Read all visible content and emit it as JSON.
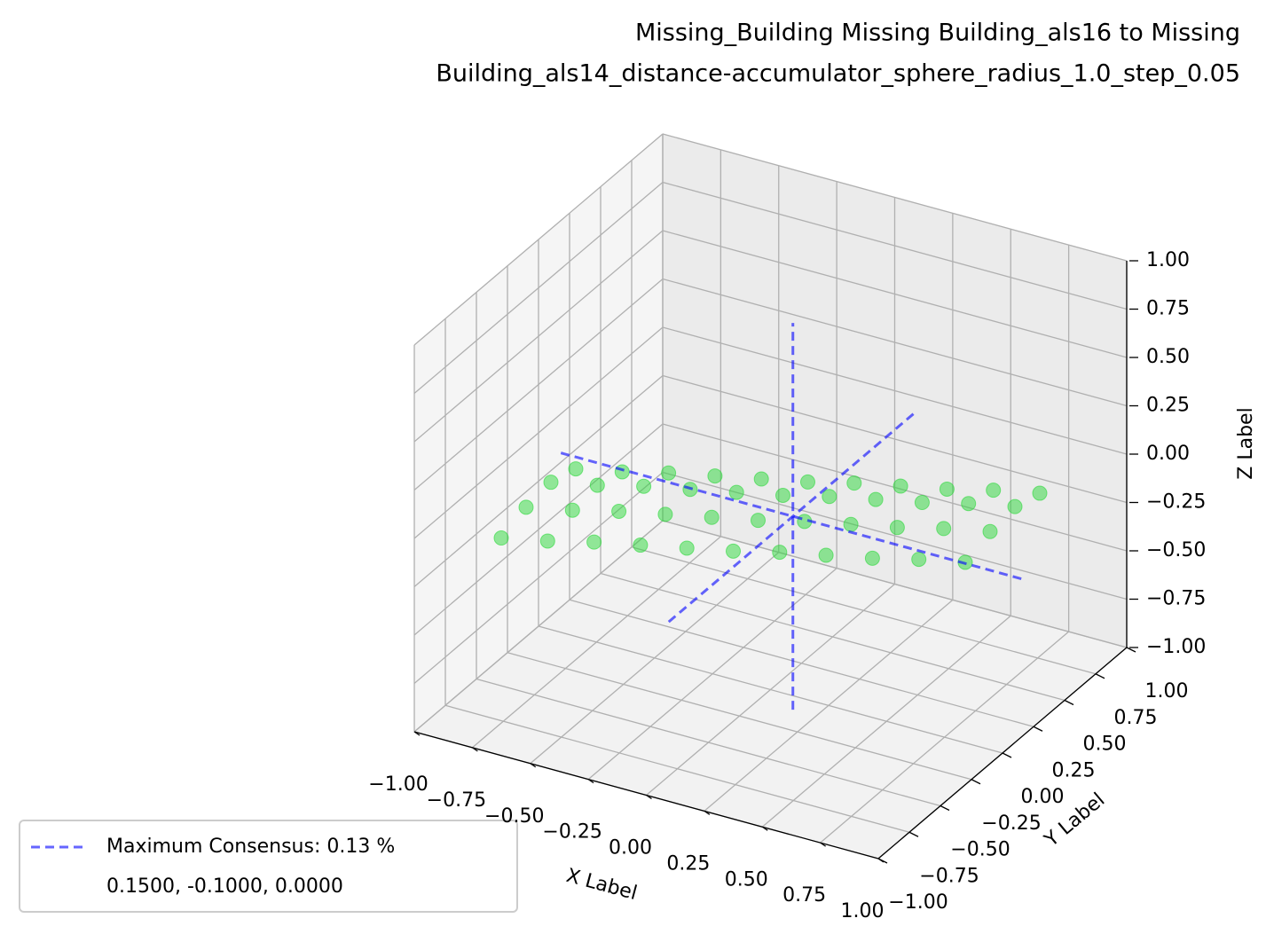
{
  "chart_data": {
    "type": "scatter3d",
    "title": [
      "Missing_Building Missing Building_als16 to Missing",
      "Building_als14_distance-accumulator_sphere_radius_1.0_step_0.05"
    ],
    "xlabel": "X Label",
    "ylabel": "Y Label",
    "zlabel": "Z Label",
    "xlim": [
      -1,
      1
    ],
    "ylim": [
      -1,
      1
    ],
    "zlim": [
      -1,
      1
    ],
    "xticks": [
      {
        "value": -1,
        "label": "−1.00"
      },
      {
        "value": -0.75,
        "label": "−0.75"
      },
      {
        "value": -0.5,
        "label": "−0.50"
      },
      {
        "value": -0.25,
        "label": "−0.25"
      },
      {
        "value": 0,
        "label": "0.00"
      },
      {
        "value": 0.25,
        "label": "0.25"
      },
      {
        "value": 0.5,
        "label": "0.50"
      },
      {
        "value": 0.75,
        "label": "0.75"
      },
      {
        "value": 1,
        "label": "1.00"
      }
    ],
    "yticks": [
      {
        "value": -1,
        "label": "−1.00"
      },
      {
        "value": -0.75,
        "label": "−0.75"
      },
      {
        "value": -0.5,
        "label": "−0.50"
      },
      {
        "value": -0.25,
        "label": "−0.25"
      },
      {
        "value": 0,
        "label": "0.00"
      },
      {
        "value": 0.25,
        "label": "0.25"
      },
      {
        "value": 0.5,
        "label": "0.50"
      },
      {
        "value": 0.75,
        "label": "0.75"
      },
      {
        "value": 1,
        "label": "1.00"
      }
    ],
    "zticks": [
      {
        "value": -1,
        "label": "−1.00"
      },
      {
        "value": -0.75,
        "label": "−0.75"
      },
      {
        "value": -0.5,
        "label": "−0.50"
      },
      {
        "value": -0.25,
        "label": "−0.25"
      },
      {
        "value": 0,
        "label": "0.00"
      },
      {
        "value": 0.25,
        "label": "0.25"
      },
      {
        "value": 0.5,
        "label": "0.50"
      },
      {
        "value": 0.75,
        "label": "0.75"
      },
      {
        "value": 1,
        "label": "1.00"
      }
    ],
    "grid": true,
    "points": {
      "color": "#2bd83a",
      "x": [
        -1,
        -1,
        -1,
        -1,
        -0.8,
        -0.8,
        -0.8,
        -0.8,
        -0.6,
        -0.6,
        -0.6,
        -0.6,
        -0.4,
        -0.4,
        -0.4,
        -0.4,
        -0.2,
        -0.2,
        -0.2,
        -0.2,
        0,
        0,
        0,
        0,
        0.2,
        0.2,
        0.2,
        0.2,
        0.4,
        0.4,
        0.4,
        0.4,
        0.6,
        0.6,
        0.6,
        0.6,
        0.8,
        0.8,
        0.8,
        0.8,
        1,
        1,
        1,
        1
      ],
      "y": [
        -0.3,
        -0.1,
        0.1,
        0.3,
        -0.3,
        -0.1,
        0.1,
        0.3,
        -0.3,
        -0.1,
        0.1,
        0.3,
        -0.3,
        -0.1,
        0.1,
        0.3,
        -0.3,
        -0.1,
        0.1,
        0.3,
        -0.3,
        -0.1,
        0.1,
        0.3,
        -0.3,
        -0.1,
        0.1,
        0.3,
        -0.3,
        -0.1,
        0.1,
        0.3,
        -0.3,
        -0.1,
        0.1,
        0.3,
        -0.3,
        -0.1,
        0.1,
        0.3,
        -0.3,
        -0.1,
        0.1,
        0.3
      ],
      "z": [
        -0.38,
        -0.33,
        -0.31,
        -0.35,
        -0.33,
        -0.28,
        -0.26,
        -0.3,
        -0.27,
        -0.22,
        -0.2,
        -0.24,
        -0.22,
        -0.17,
        -0.15,
        -0.19,
        -0.17,
        -0.12,
        -0.1,
        -0.14,
        -0.12,
        -0.07,
        -0.05,
        -0.09,
        -0.06,
        -0.01,
        0.01,
        -0.03,
        -0.01,
        0.04,
        0.06,
        0.02,
        0.04,
        0.09,
        0.11,
        0.07,
        0.1,
        0.15,
        0.17,
        0.13,
        0.15,
        0.2,
        0.22,
        0.18
      ]
    },
    "consensus": {
      "name": "Maximum Consensus: 0.13 %",
      "detail": "0.1500, -0.1000, 0.0000",
      "color": "#0000ff",
      "lines": [
        {
          "x": [
            -0.85,
            1.15
          ],
          "y": [
            -0.1,
            -0.1
          ],
          "z": [
            0,
            0
          ]
        },
        {
          "x": [
            0.15,
            0.15
          ],
          "y": [
            -1.1,
            0.9
          ],
          "z": [
            0,
            0
          ]
        },
        {
          "x": [
            0.15,
            0.15
          ],
          "y": [
            -0.1,
            -0.1
          ],
          "z": [
            -1,
            1
          ]
        }
      ]
    },
    "legend": "lower left"
  }
}
